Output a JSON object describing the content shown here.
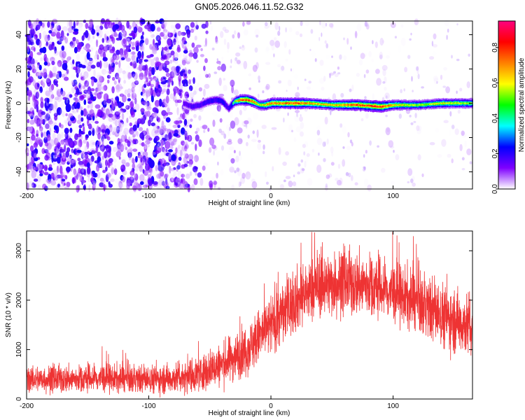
{
  "figure": {
    "title": "GN05.2026.046.11.52.G32"
  },
  "chart_data": [
    {
      "type": "heatmap",
      "title": "GN05.2026.046.11.52.G32",
      "xlabel": "Height of straight line (km)",
      "ylabel": "Frequency (Hz)",
      "xlim": [
        -200,
        165
      ],
      "ylim": [
        -50,
        48
      ],
      "x_ticks": [
        -200,
        -100,
        0,
        100
      ],
      "x_tick_labels": [
        "-200",
        "-100",
        "0",
        "100"
      ],
      "y_ticks": [
        -40,
        -20,
        0,
        20,
        40
      ],
      "y_tick_labels": [
        "-40",
        "-20",
        "0",
        "20",
        "40"
      ],
      "colorbar": {
        "label": "Normalized spectral amplitude",
        "range": [
          0,
          0.95
        ],
        "ticks": [
          0,
          0.2,
          0.4,
          0.6,
          0.8
        ],
        "tick_labels": [
          "0.0",
          "0.2",
          "0.4",
          "0.6",
          "0.8"
        ],
        "colormap": [
          "#ffffff",
          "#7f00ff",
          "#0000ff",
          "#00ffff",
          "#00ff00",
          "#ffff00",
          "#ff8000",
          "#ff0000",
          "#ff0080"
        ]
      },
      "noise_region_x": [
        -200,
        -70
      ],
      "ridge": {
        "x": [
          -72,
          -65,
          -58,
          -52,
          -45,
          -40,
          -35,
          -30,
          -25,
          -20,
          -15,
          -10,
          -5,
          0,
          10,
          20,
          30,
          50,
          70,
          90,
          100,
          120,
          140,
          165
        ],
        "frequency": [
          0,
          -2,
          -1,
          1,
          2,
          1,
          -3,
          1,
          2,
          2,
          1,
          -1,
          -1,
          0,
          0,
          0,
          0,
          -1,
          -1,
          -2,
          -1,
          -1,
          0,
          0
        ],
        "peak_amplitude": [
          0.3,
          0.35,
          0.35,
          0.4,
          0.4,
          0.45,
          0.35,
          0.6,
          0.8,
          0.85,
          0.8,
          0.6,
          0.7,
          0.8,
          0.8,
          0.85,
          0.75,
          0.7,
          0.85,
          0.9,
          0.7,
          0.6,
          0.65,
          0.6
        ]
      }
    },
    {
      "type": "line",
      "xlabel": "Height of straight line (km)",
      "ylabel": "SNR (10 * v/v)",
      "xlim": [
        -200,
        165
      ],
      "ylim": [
        0,
        3400
      ],
      "x_ticks": [
        -200,
        -100,
        0,
        100
      ],
      "x_tick_labels": [
        "-200",
        "-100",
        "0",
        "100"
      ],
      "y_ticks": [
        0,
        1000,
        2000,
        3000
      ],
      "y_tick_labels": [
        "0",
        "1000",
        "2000",
        "3000"
      ],
      "color": "#ee3333",
      "series": [
        {
          "name": "SNR",
          "envelope_x": [
            -200,
            -180,
            -160,
            -140,
            -120,
            -100,
            -80,
            -60,
            -40,
            -20,
            0,
            20,
            40,
            60,
            80,
            100,
            120,
            140,
            165
          ],
          "mean": [
            400,
            400,
            400,
            420,
            400,
            400,
            420,
            500,
            700,
            1000,
            1500,
            2000,
            2300,
            2350,
            2300,
            2150,
            1950,
            1700,
            1450
          ],
          "spread": [
            180,
            180,
            180,
            190,
            180,
            180,
            200,
            230,
            280,
            330,
            400,
            420,
            420,
            430,
            420,
            400,
            400,
            420,
            420
          ]
        }
      ]
    }
  ]
}
